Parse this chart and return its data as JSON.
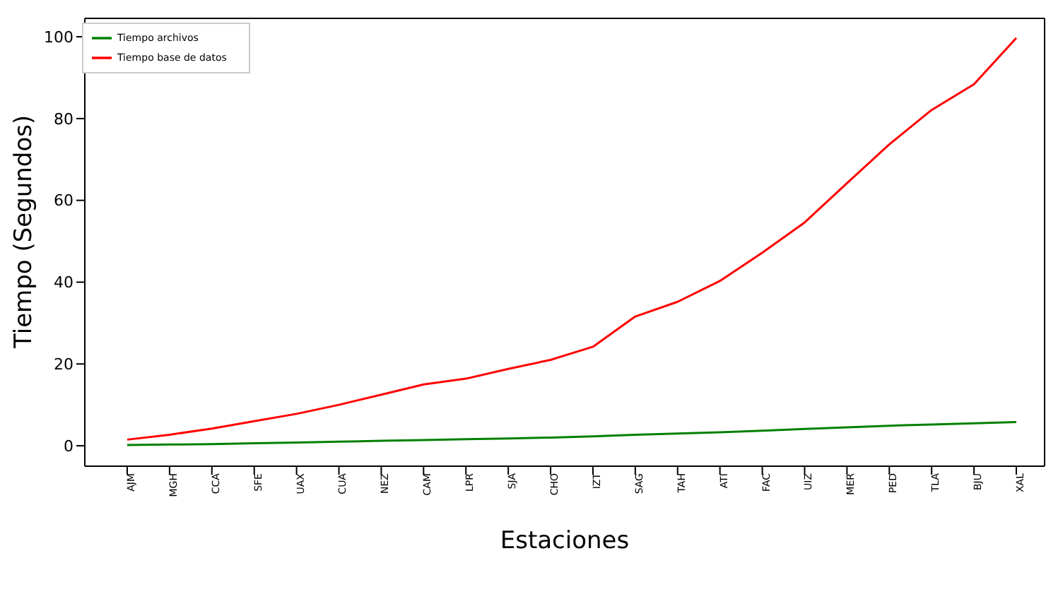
{
  "chart_data": {
    "type": "line",
    "xlabel": "Estaciones",
    "ylabel": "Tiempo (Segundos)",
    "categories": [
      "AJM",
      "MGH",
      "CCA",
      "SFE",
      "UAX",
      "CUA",
      "NEZ",
      "CAM",
      "LPR",
      "SJA",
      "CHO",
      "IZT",
      "SAG",
      "TAH",
      "ATI",
      "FAC",
      "UIZ",
      "MER",
      "PED",
      "TLA",
      "BJU",
      "XAL"
    ],
    "series": [
      {
        "name": "Tiempo archivos",
        "color": "#008000",
        "values": [
          0.2,
          0.3,
          0.4,
          0.6,
          0.8,
          1.0,
          1.2,
          1.4,
          1.6,
          1.8,
          2.0,
          2.3,
          2.7,
          3.0,
          3.3,
          3.7,
          4.1,
          4.5,
          4.9,
          5.2,
          5.5,
          5.8
        ]
      },
      {
        "name": "Tiempo base de datos",
        "color": "#ff0000",
        "values": [
          1.5,
          2.7,
          4.2,
          6,
          7.8,
          10,
          12.5,
          15,
          16.4,
          18.8,
          21,
          24.2,
          31.6,
          35.2,
          40.3,
          47.2,
          54.6,
          64.2,
          73.7,
          82.1,
          88.4,
          99.7
        ]
      }
    ],
    "ylim": [
      -5,
      104.5
    ],
    "yticks": [
      0,
      20,
      40,
      60,
      80,
      100
    ],
    "grid": false,
    "legend": "top left",
    "marker": "none",
    "line_style": "solid"
  }
}
